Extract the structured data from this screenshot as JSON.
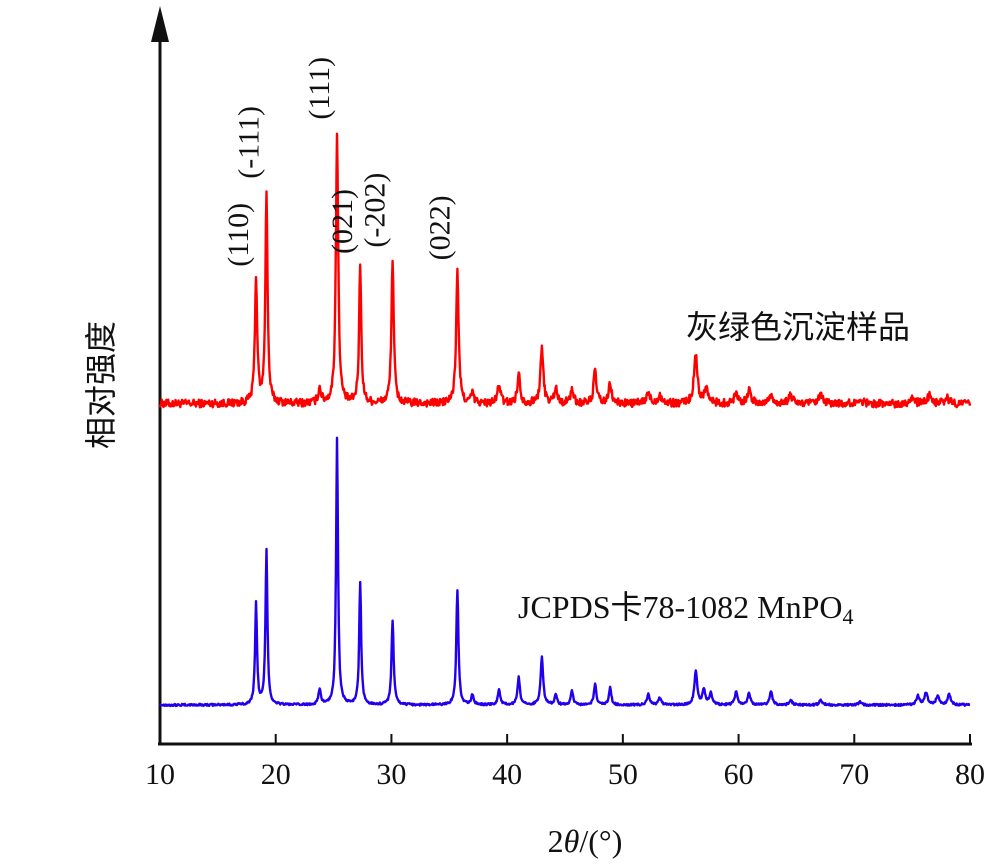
{
  "chart_data": {
    "type": "line",
    "xlabel_prefix": "2",
    "xlabel_theta": "θ",
    "xlabel_suffix": "/(°)",
    "ylabel": "相对强度",
    "xlim": [
      10,
      80
    ],
    "x_ticks": [
      "10",
      "20",
      "30",
      "40",
      "50",
      "60",
      "70",
      "80"
    ],
    "grid": false,
    "legend": "none",
    "series": [
      {
        "label": "灰绿色沉淀样品",
        "color": "#ff0000",
        "baseline": 0.09,
        "noise": 0.025,
        "peaks": [
          {
            "x": 18.3,
            "h": 0.78,
            "w": 0.12
          },
          {
            "x": 19.2,
            "h": 1.33,
            "w": 0.11
          },
          {
            "x": 23.8,
            "h": 0.09,
            "w": 0.15
          },
          {
            "x": 25.3,
            "h": 1.7,
            "w": 0.12
          },
          {
            "x": 27.3,
            "h": 0.86,
            "w": 0.11
          },
          {
            "x": 30.1,
            "h": 0.9,
            "w": 0.12
          },
          {
            "x": 35.7,
            "h": 0.82,
            "w": 0.13
          },
          {
            "x": 37.0,
            "h": 0.06,
            "w": 0.15
          },
          {
            "x": 39.3,
            "h": 0.12,
            "w": 0.15
          },
          {
            "x": 41.0,
            "h": 0.18,
            "w": 0.15
          },
          {
            "x": 43.0,
            "h": 0.34,
            "w": 0.15
          },
          {
            "x": 44.2,
            "h": 0.1,
            "w": 0.15
          },
          {
            "x": 45.6,
            "h": 0.09,
            "w": 0.15
          },
          {
            "x": 47.6,
            "h": 0.2,
            "w": 0.15
          },
          {
            "x": 48.9,
            "h": 0.12,
            "w": 0.15
          },
          {
            "x": 52.2,
            "h": 0.06,
            "w": 0.2
          },
          {
            "x": 53.2,
            "h": 0.05,
            "w": 0.2
          },
          {
            "x": 56.3,
            "h": 0.3,
            "w": 0.18
          },
          {
            "x": 57.2,
            "h": 0.1,
            "w": 0.18
          },
          {
            "x": 59.8,
            "h": 0.07,
            "w": 0.18
          },
          {
            "x": 60.9,
            "h": 0.08,
            "w": 0.18
          },
          {
            "x": 62.8,
            "h": 0.05,
            "w": 0.2
          },
          {
            "x": 64.5,
            "h": 0.05,
            "w": 0.2
          },
          {
            "x": 67.1,
            "h": 0.05,
            "w": 0.2
          },
          {
            "x": 70.5,
            "h": 0.03,
            "w": 0.2
          },
          {
            "x": 75.0,
            "h": 0.04,
            "w": 0.2
          },
          {
            "x": 76.5,
            "h": 0.05,
            "w": 0.2
          },
          {
            "x": 78.0,
            "h": 0.04,
            "w": 0.2
          }
        ]
      },
      {
        "label_main": "JCPDS卡78-1082 MnPO",
        "label_sub": "4",
        "color": "#2200ee",
        "baseline": 0.0,
        "noise": 0.006,
        "peaks": [
          {
            "x": 18.3,
            "h": 0.59,
            "w": 0.1
          },
          {
            "x": 19.2,
            "h": 0.9,
            "w": 0.1
          },
          {
            "x": 23.8,
            "h": 0.09,
            "w": 0.12
          },
          {
            "x": 25.3,
            "h": 1.55,
            "w": 0.1
          },
          {
            "x": 27.3,
            "h": 0.71,
            "w": 0.1
          },
          {
            "x": 30.1,
            "h": 0.49,
            "w": 0.11
          },
          {
            "x": 35.7,
            "h": 0.67,
            "w": 0.11
          },
          {
            "x": 37.0,
            "h": 0.06,
            "w": 0.12
          },
          {
            "x": 39.3,
            "h": 0.09,
            "w": 0.12
          },
          {
            "x": 41.0,
            "h": 0.16,
            "w": 0.12
          },
          {
            "x": 43.0,
            "h": 0.28,
            "w": 0.13
          },
          {
            "x": 44.2,
            "h": 0.06,
            "w": 0.12
          },
          {
            "x": 45.6,
            "h": 0.08,
            "w": 0.12
          },
          {
            "x": 47.6,
            "h": 0.12,
            "w": 0.12
          },
          {
            "x": 48.9,
            "h": 0.1,
            "w": 0.12
          },
          {
            "x": 52.2,
            "h": 0.06,
            "w": 0.14
          },
          {
            "x": 53.2,
            "h": 0.04,
            "w": 0.14
          },
          {
            "x": 56.3,
            "h": 0.2,
            "w": 0.14
          },
          {
            "x": 57.0,
            "h": 0.09,
            "w": 0.14
          },
          {
            "x": 57.6,
            "h": 0.07,
            "w": 0.14
          },
          {
            "x": 59.8,
            "h": 0.08,
            "w": 0.14
          },
          {
            "x": 60.9,
            "h": 0.07,
            "w": 0.14
          },
          {
            "x": 62.8,
            "h": 0.08,
            "w": 0.14
          },
          {
            "x": 64.5,
            "h": 0.03,
            "w": 0.14
          },
          {
            "x": 67.1,
            "h": 0.03,
            "w": 0.14
          },
          {
            "x": 70.5,
            "h": 0.02,
            "w": 0.14
          },
          {
            "x": 75.5,
            "h": 0.05,
            "w": 0.16
          },
          {
            "x": 76.2,
            "h": 0.07,
            "w": 0.16
          },
          {
            "x": 77.2,
            "h": 0.05,
            "w": 0.16
          },
          {
            "x": 78.2,
            "h": 0.06,
            "w": 0.16
          }
        ]
      }
    ],
    "annotations": [
      {
        "text": "(110)",
        "x": 18.3
      },
      {
        "text": "(-111)",
        "x": 19.2
      },
      {
        "text": "(111)",
        "x": 25.3
      },
      {
        "text": "(021)",
        "x": 27.3
      },
      {
        "text": "(-202)",
        "x": 30.1
      },
      {
        "text": "(022)",
        "x": 35.7
      }
    ]
  }
}
